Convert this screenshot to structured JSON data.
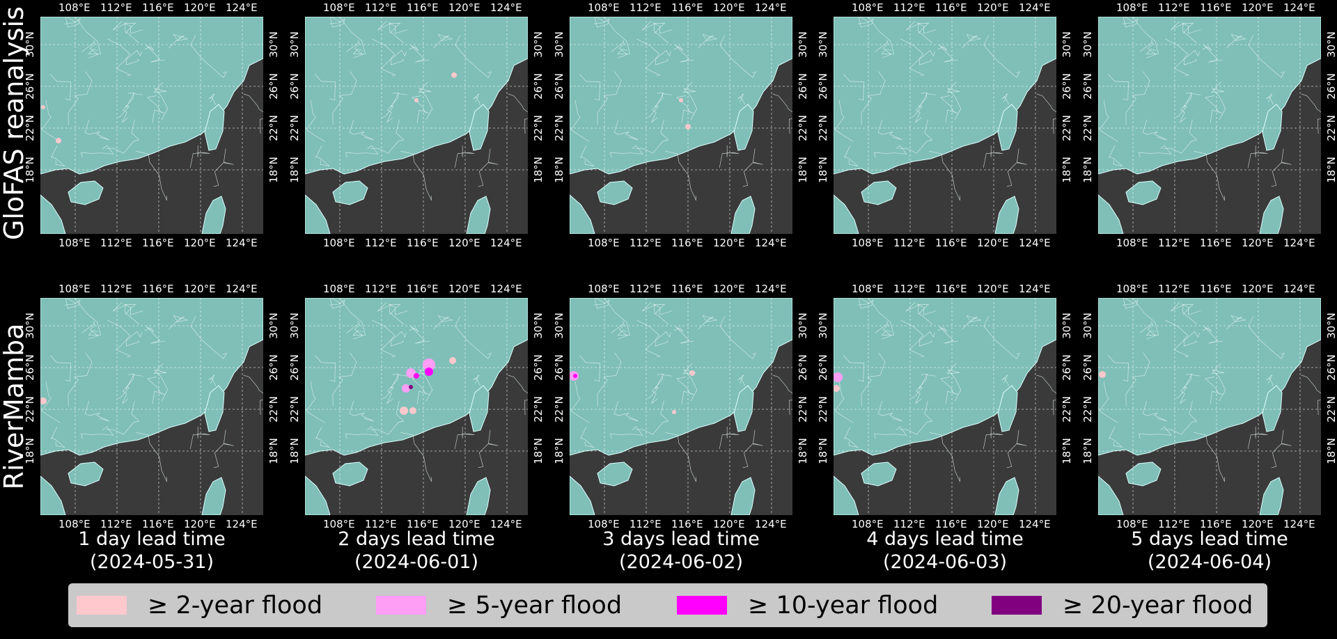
{
  "row_labels": [
    "GloFAS reanalysis",
    "RiverMamba"
  ],
  "lon_ticks": [
    "108°E",
    "112°E",
    "116°E",
    "120°E",
    "124°E"
  ],
  "lat_ticks": [
    "30°N",
    "26°N",
    "22°N",
    "18°N"
  ],
  "columns": [
    {
      "lead": "1 day lead time",
      "date": "(2024-05-31)"
    },
    {
      "lead": "2 days lead time",
      "date": "(2024-06-01)"
    },
    {
      "lead": "3 days lead time",
      "date": "(2024-06-02)"
    },
    {
      "lead": "4 days lead time",
      "date": "(2024-06-03)"
    },
    {
      "lead": "5 days lead time",
      "date": "(2024-06-04)"
    }
  ],
  "legend": [
    {
      "label": "≥  2-year flood",
      "color": "#ffc8cc"
    },
    {
      "label": "≥  5-year flood",
      "color": "#ff9ef5"
    },
    {
      "label": "≥  10-year flood",
      "color": "#ff00ff"
    },
    {
      "label": "≥  20-year flood",
      "color": "#800080"
    }
  ],
  "colors": {
    "land": "#7fbfb8",
    "ocean": "#3a3a3a",
    "river": "#e8f4f2"
  }
}
